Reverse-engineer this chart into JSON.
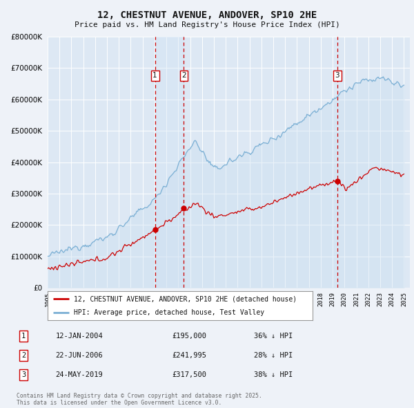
{
  "title": "12, CHESTNUT AVENUE, ANDOVER, SP10 2HE",
  "subtitle": "Price paid vs. HM Land Registry's House Price Index (HPI)",
  "background_color": "#eef2f8",
  "plot_bg_color": "#dde8f4",
  "ylim": [
    0,
    800000
  ],
  "yticks": [
    0,
    100000,
    200000,
    300000,
    400000,
    500000,
    600000,
    700000,
    800000
  ],
  "xlim_start": 1995.0,
  "xlim_end": 2025.5,
  "legend_line1": "12, CHESTNUT AVENUE, ANDOVER, SP10 2HE (detached house)",
  "legend_line2": "HPI: Average price, detached house, Test Valley",
  "transactions": [
    {
      "num": 1,
      "date_str": "12-JAN-2004",
      "price": 195000,
      "price_str": "£195,000",
      "pct": "36%",
      "dir": "↓",
      "x": 2004.04
    },
    {
      "num": 2,
      "date_str": "22-JUN-2006",
      "price": 241995,
      "price_str": "£241,995",
      "pct": "28%",
      "dir": "↓",
      "x": 2006.47
    },
    {
      "num": 3,
      "date_str": "24-MAY-2019",
      "price": 317500,
      "price_str": "£317,500",
      "pct": "38%",
      "dir": "↓",
      "x": 2019.39
    }
  ],
  "copyright_text": "Contains HM Land Registry data © Crown copyright and database right 2025.\nThis data is licensed under the Open Government Licence v3.0.",
  "red_line_color": "#cc0000",
  "blue_line_color": "#7aafd4",
  "blue_fill_color": "#c8ddf0",
  "dashed_line_color": "#cc0000",
  "marker_box_color": "#cc0000",
  "highlight_fill_color": "#d0e4f5"
}
